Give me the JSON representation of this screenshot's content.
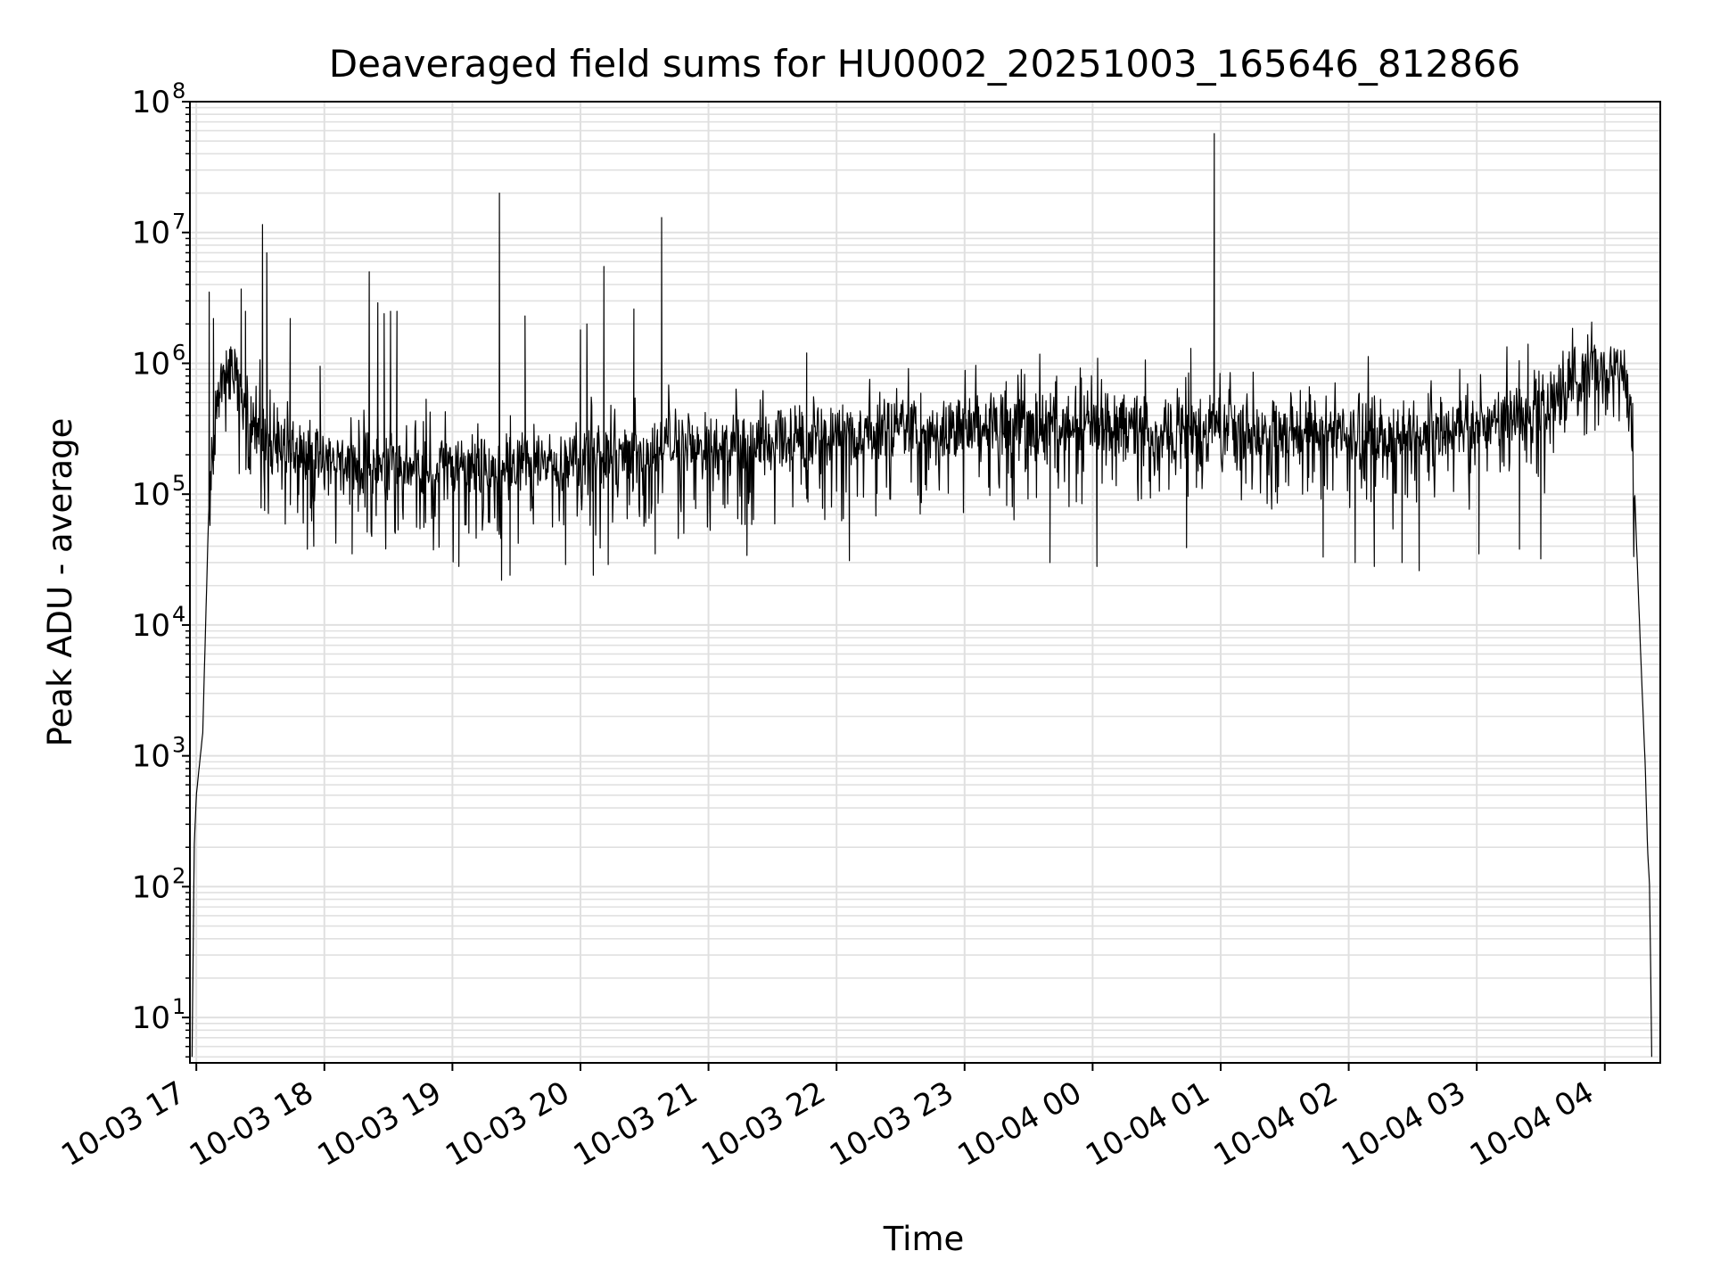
{
  "chart_data": {
    "type": "line",
    "title": "Deaveraged field sums for HU0002_20251003_165646_812866",
    "xlabel": "Time",
    "ylabel": "Peak ADU - average",
    "yscale": "log",
    "ylim": [
      4.5,
      100000000
    ],
    "xlim": [
      "2025-10-03 16:57",
      "2025-10-04 04:26"
    ],
    "grid": true,
    "x_ticks": [
      "10-03 17",
      "10-03 18",
      "10-03 19",
      "10-03 20",
      "10-03 21",
      "10-03 22",
      "10-03 23",
      "10-04 00",
      "10-04 01",
      "10-04 02",
      "10-04 03",
      "10-04 04"
    ],
    "y_ticks": [
      {
        "base": "10",
        "exp": "1"
      },
      {
        "base": "10",
        "exp": "2"
      },
      {
        "base": "10",
        "exp": "3"
      },
      {
        "base": "10",
        "exp": "4"
      },
      {
        "base": "10",
        "exp": "5"
      },
      {
        "base": "10",
        "exp": "6"
      },
      {
        "base": "10",
        "exp": "7"
      },
      {
        "base": "10",
        "exp": "8"
      }
    ],
    "line_color": "#000000",
    "grid_color": "#e0e0e0",
    "series": [
      {
        "baseline": [
          {
            "x": "2025-10-03 16:58",
            "y": 5
          },
          {
            "x": "2025-10-03 16:59",
            "y": 200
          },
          {
            "x": "2025-10-03 17:00",
            "y": 500
          },
          {
            "x": "2025-10-03 17:03",
            "y": 1500
          },
          {
            "x": "2025-10-03 17:06",
            "y": 100000
          },
          {
            "x": "2025-10-03 17:10",
            "y": 600000
          },
          {
            "x": "2025-10-03 17:14",
            "y": 900000
          },
          {
            "x": "2025-10-03 17:18",
            "y": 800000
          },
          {
            "x": "2025-10-03 17:25",
            "y": 400000
          },
          {
            "x": "2025-10-03 17:35",
            "y": 230000
          },
          {
            "x": "2025-10-03 18:00",
            "y": 180000
          },
          {
            "x": "2025-10-03 19:00",
            "y": 160000
          },
          {
            "x": "2025-10-03 20:00",
            "y": 180000
          },
          {
            "x": "2025-10-03 21:00",
            "y": 230000
          },
          {
            "x": "2025-10-03 22:00",
            "y": 280000
          },
          {
            "x": "2025-10-03 23:00",
            "y": 320000
          },
          {
            "x": "2025-10-04 00:00",
            "y": 340000
          },
          {
            "x": "2025-10-04 01:00",
            "y": 320000
          },
          {
            "x": "2025-10-04 02:00",
            "y": 290000
          },
          {
            "x": "2025-10-04 03:00",
            "y": 320000
          },
          {
            "x": "2025-10-04 03:30",
            "y": 450000
          },
          {
            "x": "2025-10-04 03:45",
            "y": 750000
          },
          {
            "x": "2025-10-04 04:05",
            "y": 1000000
          },
          {
            "x": "2025-10-04 04:10",
            "y": 800000
          },
          {
            "x": "2025-10-04 04:14",
            "y": 100000
          },
          {
            "x": "2025-10-04 04:17",
            "y": 5000
          },
          {
            "x": "2025-10-04 04:19",
            "y": 800
          },
          {
            "x": "2025-10-04 04:20",
            "y": 200
          },
          {
            "x": "2025-10-04 04:21",
            "y": 100
          },
          {
            "x": "2025-10-04 04:22",
            "y": 5
          }
        ],
        "spikes": [
          {
            "x": "2025-10-03 17:06",
            "y": 3500000
          },
          {
            "x": "2025-10-03 17:08",
            "y": 2200000
          },
          {
            "x": "2025-10-03 17:21",
            "y": 3700000
          },
          {
            "x": "2025-10-03 17:23",
            "y": 2500000
          },
          {
            "x": "2025-10-03 17:31",
            "y": 11500000
          },
          {
            "x": "2025-10-03 17:33",
            "y": 7000000
          },
          {
            "x": "2025-10-03 17:44",
            "y": 2200000
          },
          {
            "x": "2025-10-03 17:58",
            "y": 950000
          },
          {
            "x": "2025-10-03 18:21",
            "y": 5000000
          },
          {
            "x": "2025-10-03 18:25",
            "y": 2900000
          },
          {
            "x": "2025-10-03 18:28",
            "y": 2400000
          },
          {
            "x": "2025-10-03 18:31",
            "y": 2500000
          },
          {
            "x": "2025-10-03 18:34",
            "y": 2500000
          },
          {
            "x": "2025-10-03 19:22",
            "y": 20000000
          },
          {
            "x": "2025-10-03 19:34",
            "y": 2300000
          },
          {
            "x": "2025-10-03 20:00",
            "y": 1800000
          },
          {
            "x": "2025-10-03 20:03",
            "y": 2000000
          },
          {
            "x": "2025-10-03 20:11",
            "y": 5500000
          },
          {
            "x": "2025-10-03 20:25",
            "y": 2600000
          },
          {
            "x": "2025-10-03 20:38",
            "y": 13000000
          },
          {
            "x": "2025-10-03 21:46",
            "y": 1200000
          },
          {
            "x": "2025-10-04 00:46",
            "y": 1300000
          },
          {
            "x": "2025-10-04 00:57",
            "y": 57000000
          },
          {
            "x": "2025-10-04 03:24",
            "y": 1400000
          }
        ],
        "dips": [
          {
            "x": "2025-10-03 17:32",
            "y": 75000
          },
          {
            "x": "2025-10-03 17:52",
            "y": 38000
          },
          {
            "x": "2025-10-03 17:55",
            "y": 40000
          },
          {
            "x": "2025-10-03 18:13",
            "y": 35000
          },
          {
            "x": "2025-10-03 19:03",
            "y": 28000
          },
          {
            "x": "2025-10-03 19:23",
            "y": 22000
          },
          {
            "x": "2025-10-03 19:27",
            "y": 24000
          },
          {
            "x": "2025-10-03 19:53",
            "y": 29000
          },
          {
            "x": "2025-10-03 20:06",
            "y": 24000
          },
          {
            "x": "2025-10-03 20:13",
            "y": 29000
          },
          {
            "x": "2025-10-03 20:35",
            "y": 35000
          },
          {
            "x": "2025-10-03 21:18",
            "y": 34000
          },
          {
            "x": "2025-10-03 22:06",
            "y": 31000
          },
          {
            "x": "2025-10-03 23:40",
            "y": 30000
          },
          {
            "x": "2025-10-04 00:02",
            "y": 28000
          },
          {
            "x": "2025-10-04 00:44",
            "y": 39000
          },
          {
            "x": "2025-10-04 01:48",
            "y": 33000
          },
          {
            "x": "2025-10-04 02:03",
            "y": 30000
          },
          {
            "x": "2025-10-04 02:12",
            "y": 28000
          },
          {
            "x": "2025-10-04 02:25",
            "y": 30000
          },
          {
            "x": "2025-10-04 02:33",
            "y": 26000
          },
          {
            "x": "2025-10-04 03:01",
            "y": 35000
          },
          {
            "x": "2025-10-04 03:20",
            "y": 38000
          },
          {
            "x": "2025-10-04 03:30",
            "y": 32000
          }
        ]
      }
    ]
  }
}
